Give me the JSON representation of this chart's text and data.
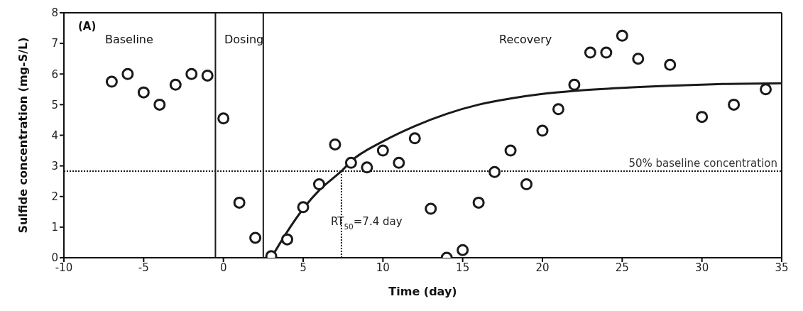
{
  "chart_data": {
    "type": "scatter",
    "xlabel": "Time (day)",
    "ylabel": "Sulfide concentration (mg-S/L)",
    "x": [
      -7,
      -6,
      -5,
      -4,
      -3,
      -2,
      -1,
      0,
      1,
      2,
      3,
      4,
      5,
      6,
      7,
      8,
      9,
      10,
      11,
      12,
      13,
      14,
      15,
      16,
      17,
      18,
      19,
      20,
      21,
      22,
      23,
      24,
      25,
      26,
      28,
      30,
      32,
      34
    ],
    "series": [
      {
        "color": "#1a1a1a",
        "marker": "circle",
        "values": [
          5.75,
          6.0,
          5.4,
          5.0,
          5.65,
          6.0,
          5.95,
          4.55,
          1.8,
          0.65,
          0.05,
          0.6,
          1.65,
          2.4,
          3.7,
          3.1,
          2.95,
          3.5,
          3.1,
          3.9,
          1.6,
          0.0,
          0.25,
          1.8,
          2.8,
          3.5,
          2.4,
          4.15,
          4.85,
          5.65,
          6.7,
          6.7,
          7.25,
          6.5,
          6.3,
          4.6,
          5.0,
          5.5
        ]
      },
      {
        "type": "line",
        "color": "#1a1a1a",
        "marker": "none",
        "line_style": "solid",
        "x": [
          3,
          4,
          5,
          6,
          7,
          7.4,
          8,
          10,
          12,
          14,
          16,
          18,
          20,
          22,
          25,
          28,
          31,
          35
        ],
        "values": [
          0,
          0.85,
          1.6,
          2.2,
          2.65,
          2.83,
          3.15,
          3.8,
          4.3,
          4.7,
          5.0,
          5.2,
          5.35,
          5.45,
          5.55,
          5.62,
          5.67,
          5.7
        ]
      }
    ],
    "xlim": [
      -10,
      35
    ],
    "xticks": [
      -10,
      -5,
      0,
      5,
      10,
      15,
      20,
      25,
      30,
      35
    ],
    "ylim": [
      0,
      8
    ],
    "yticks": [
      0,
      1,
      2,
      3,
      4,
      5,
      6,
      7,
      8
    ],
    "ref_lines": [
      {
        "axis": "x",
        "value": -0.5,
        "color": "#1a1a1a",
        "line_style": "solid"
      },
      {
        "axis": "x",
        "value": 2.5,
        "color": "#1a1a1a",
        "line_style": "solid"
      },
      {
        "axis": "y",
        "value": 2.83,
        "label": "50% baseline concentration",
        "color": "#1a1a1a",
        "line_style": "dotted"
      },
      {
        "axis": "x",
        "value": 7.4,
        "label": "RT$_{50}$=7.4 day",
        "color": "#1a1a1a",
        "line_style": "dotted"
      }
    ],
    "annotations": [
      "(A)",
      "Baseline",
      "Dosing",
      "Recovery"
    ]
  }
}
